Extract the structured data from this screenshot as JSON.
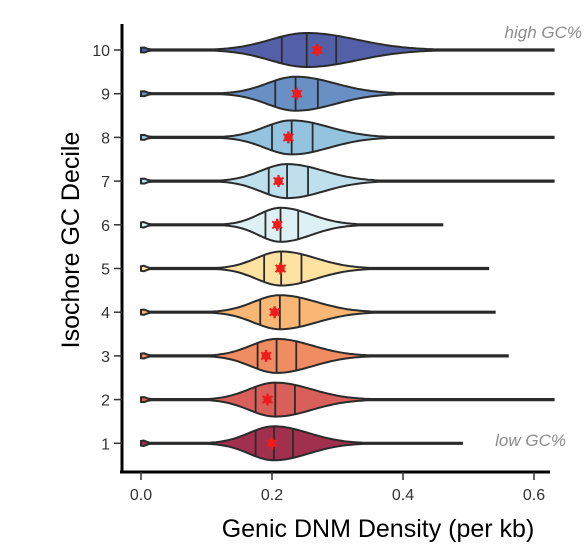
{
  "chart_data": {
    "type": "violin",
    "orientation": "horizontal",
    "xlabel": "Genic DNM Density (per kb)",
    "ylabel": "Isochore GC Decile",
    "xlim": [
      -0.03,
      0.63
    ],
    "xticks": [
      "0.0",
      "0.2",
      "0.4",
      "0.6"
    ],
    "xtick_values": [
      0.0,
      0.2,
      0.4,
      0.6
    ],
    "categories": [
      "1",
      "2",
      "3",
      "4",
      "5",
      "6",
      "7",
      "8",
      "9",
      "10"
    ],
    "series": [
      {
        "decile": "1",
        "q1": 0.175,
        "median": 0.203,
        "q3": 0.232,
        "mean": 0.2,
        "max": 0.49,
        "color": "#a0304e"
      },
      {
        "decile": "2",
        "q1": 0.175,
        "median": 0.205,
        "q3": 0.235,
        "mean": 0.193,
        "max": 0.63,
        "color": "#d9605a"
      },
      {
        "decile": "3",
        "q1": 0.178,
        "median": 0.207,
        "q3": 0.237,
        "mean": 0.191,
        "max": 0.56,
        "color": "#f08c62"
      },
      {
        "decile": "4",
        "q1": 0.182,
        "median": 0.212,
        "q3": 0.242,
        "mean": 0.204,
        "max": 0.54,
        "color": "#f8b774"
      },
      {
        "decile": "5",
        "q1": 0.188,
        "median": 0.214,
        "q3": 0.245,
        "mean": 0.213,
        "max": 0.53,
        "color": "#fde2a2"
      },
      {
        "decile": "6",
        "q1": 0.19,
        "median": 0.213,
        "q3": 0.24,
        "mean": 0.208,
        "max": 0.46,
        "color": "#ddf0f3"
      },
      {
        "decile": "7",
        "q1": 0.195,
        "median": 0.223,
        "q3": 0.255,
        "mean": 0.21,
        "max": 0.63,
        "color": "#bde0ec"
      },
      {
        "decile": "8",
        "q1": 0.2,
        "median": 0.23,
        "q3": 0.262,
        "mean": 0.225,
        "max": 0.63,
        "color": "#93c3df"
      },
      {
        "decile": "9",
        "q1": 0.205,
        "median": 0.236,
        "q3": 0.27,
        "mean": 0.238,
        "max": 0.63,
        "color": "#6990c4"
      },
      {
        "decile": "10",
        "q1": 0.215,
        "median": 0.253,
        "q3": 0.298,
        "mean": 0.269,
        "max": 0.63,
        "color": "#5360a8"
      }
    ],
    "annotations": {
      "top": "high GC%",
      "bottom": "low GC%"
    },
    "mean_marker_color": "#ee1c1c",
    "grid": false,
    "legend": "none"
  }
}
